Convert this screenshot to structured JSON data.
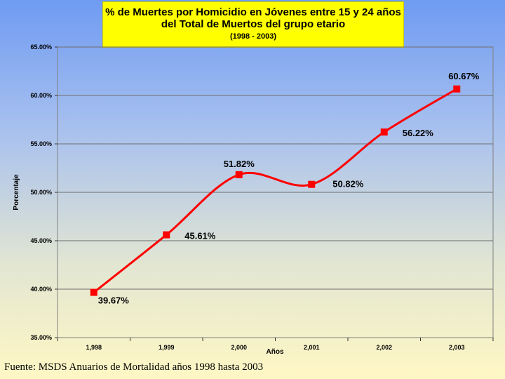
{
  "chart_data": {
    "type": "line",
    "title_line1": "% de Muertes por Homicidio en Jóvenes entre 15 y 24 años",
    "title_line2": "del Total de Muertos del grupo etario",
    "title_line3": "(1998 - 2003)",
    "xlabel": "Años",
    "ylabel": "Porcentaje",
    "categories": [
      "1,998",
      "1,999",
      "2,000",
      "2,001",
      "2,002",
      "2,003"
    ],
    "values": [
      39.67,
      45.61,
      51.82,
      50.82,
      56.22,
      60.67
    ],
    "value_labels": [
      "39.67%",
      "45.61%",
      "51.82%",
      "50.82%",
      "56.22%",
      "60.67%"
    ],
    "yticks": [
      "35.00%",
      "40.00%",
      "45.00%",
      "50.00%",
      "55.00%",
      "60.00%",
      "65.00%"
    ],
    "ylim": [
      35,
      65
    ],
    "grid": true,
    "line_color": "#ff0000",
    "marker_color": "#ff0000",
    "title_bg_color": "#ffff00"
  },
  "footer": "Fuente: MSDS Anuarios de Mortalidad años 1998 hasta 2003"
}
